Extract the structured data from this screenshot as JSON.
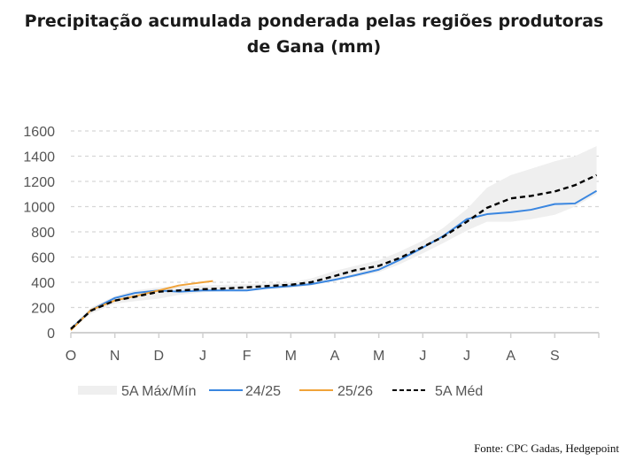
{
  "chart_data": {
    "type": "line",
    "title": "Precipitação acumulada ponderada pelas regiões produtoras de Gana (mm)",
    "title_lines": [
      "Precipitação acumulada ponderada pelas regiões produtoras",
      "de Gana (mm)"
    ],
    "xlabel": "",
    "ylabel": "",
    "ylim": [
      0,
      1600
    ],
    "yticks": [
      0,
      200,
      400,
      600,
      800,
      1000,
      1200,
      1400,
      1600
    ],
    "xtick_labels": [
      "O",
      "N",
      "D",
      "J",
      "F",
      "M",
      "A",
      "M",
      "J",
      "J",
      "A",
      "S"
    ],
    "grid": "horizontal dashed",
    "legend_position": "bottom",
    "x": [
      "10-01",
      "10-15",
      "11-01",
      "11-15",
      "12-01",
      "12-15",
      "01-01",
      "01-15",
      "02-01",
      "02-15",
      "03-01",
      "03-15",
      "04-01",
      "04-15",
      "05-01",
      "05-15",
      "06-01",
      "06-15",
      "07-01",
      "07-15",
      "08-01",
      "08-15",
      "09-01",
      "09-15",
      "09-30"
    ],
    "band": {
      "name": "5A Máx/Mín",
      "color": "#efefef",
      "min": [
        20,
        150,
        230,
        250,
        270,
        300,
        320,
        330,
        335,
        345,
        355,
        375,
        410,
        440,
        480,
        540,
        630,
        710,
        810,
        880,
        880,
        900,
        935,
        1000,
        1100
      ],
      "max": [
        40,
        200,
        290,
        335,
        360,
        370,
        375,
        380,
        385,
        390,
        400,
        430,
        490,
        530,
        575,
        640,
        730,
        830,
        980,
        1150,
        1250,
        1300,
        1360,
        1400,
        1480
      ]
    },
    "series": [
      {
        "name": "24/25",
        "color": "#3a86e0",
        "dash": false,
        "values": [
          30,
          180,
          275,
          315,
          335,
          325,
          335,
          335,
          335,
          355,
          370,
          385,
          420,
          455,
          500,
          575,
          675,
          765,
          900,
          940,
          955,
          975,
          1020,
          1025,
          1125
        ]
      },
      {
        "name": "25/26",
        "color": "#f0a33a",
        "dash": false,
        "x": [
          "10-01",
          "10-15",
          "11-01",
          "11-15",
          "12-01",
          "12-15",
          "01-01",
          "01-08"
        ],
        "values": [
          20,
          180,
          255,
          290,
          335,
          375,
          400,
          410
        ]
      },
      {
        "name": "5A Méd",
        "color": "#000000",
        "dash": true,
        "values": [
          30,
          175,
          255,
          285,
          325,
          335,
          345,
          350,
          360,
          370,
          380,
          400,
          450,
          495,
          530,
          590,
          680,
          760,
          880,
          990,
          1065,
          1085,
          1120,
          1170,
          1250
        ]
      }
    ]
  },
  "source": "Fonte: CPC Gadas, Hedgepoint"
}
